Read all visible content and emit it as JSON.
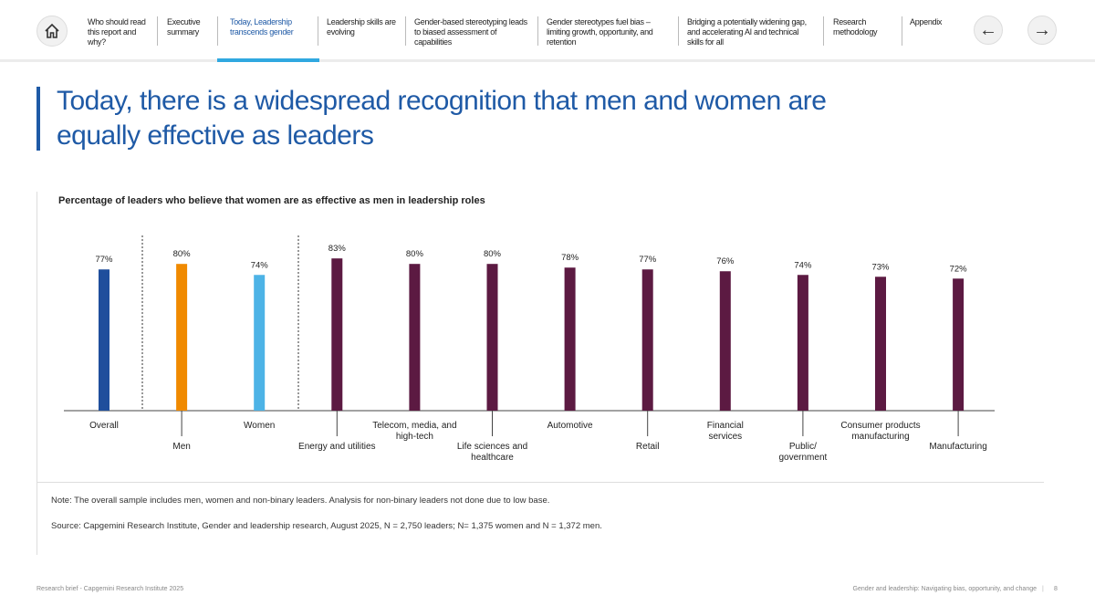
{
  "nav": {
    "items": [
      {
        "label": "Who should read this report and why?"
      },
      {
        "label": "Executive summary"
      },
      {
        "label": "Today, Leadership transcends gender",
        "active": true
      },
      {
        "label": "Leadership skills are evolving"
      },
      {
        "label": "Gender-based stereotyping leads to biased assessment of capabilities"
      },
      {
        "label": "Gender stereotypes fuel bias – limiting growth, opportunity, and retention"
      },
      {
        "label": "Bridging a potentially widening gap, and accelerating AI and technical skills for all"
      },
      {
        "label": "Research methodology"
      },
      {
        "label": "Appendix"
      }
    ],
    "prev": "←",
    "next": "→"
  },
  "title": "Today, there is a widespread recognition that men and women are equally effective as leaders",
  "chart_data": {
    "type": "bar",
    "title": "Percentage of leaders who believe that women are as effective as men in leadership roles",
    "categories": [
      "Overall",
      "Men",
      "Women",
      "Energy and utilities",
      "Telecom, media, and high-tech",
      "Life sciences and healthcare",
      "Automotive",
      "Retail",
      "Financial services",
      "Public/ government",
      "Consumer products manufacturing",
      "Manufacturing"
    ],
    "values": [
      77,
      80,
      74,
      83,
      80,
      80,
      78,
      77,
      76,
      74,
      73,
      72
    ],
    "labels": [
      "77%",
      "80%",
      "74%",
      "83%",
      "80%",
      "80%",
      "78%",
      "77%",
      "76%",
      "74%",
      "73%",
      "72%"
    ],
    "colors": [
      "#1f4e9c",
      "#f08a00",
      "#4db3e6",
      "#5c1a42",
      "#5c1a42",
      "#5c1a42",
      "#5c1a42",
      "#5c1a42",
      "#5c1a42",
      "#5c1a42",
      "#5c1a42",
      "#5c1a42"
    ],
    "ylim": [
      0,
      100
    ],
    "unit": "%"
  },
  "note": "Note: The overall sample includes men, women and non-binary leaders. Analysis for non-binary leaders not done due to low base.",
  "source": "Source: Capgemini Research Institute, Gender and leadership research, August 2025, N = 2,750 leaders; N= 1,375 women and N = 1,372 men.",
  "footer": {
    "left": "Research brief - Capgemini Research Institute 2025",
    "right": "Gender and leadership: Navigating bias, opportunity, and change",
    "page": "8"
  }
}
